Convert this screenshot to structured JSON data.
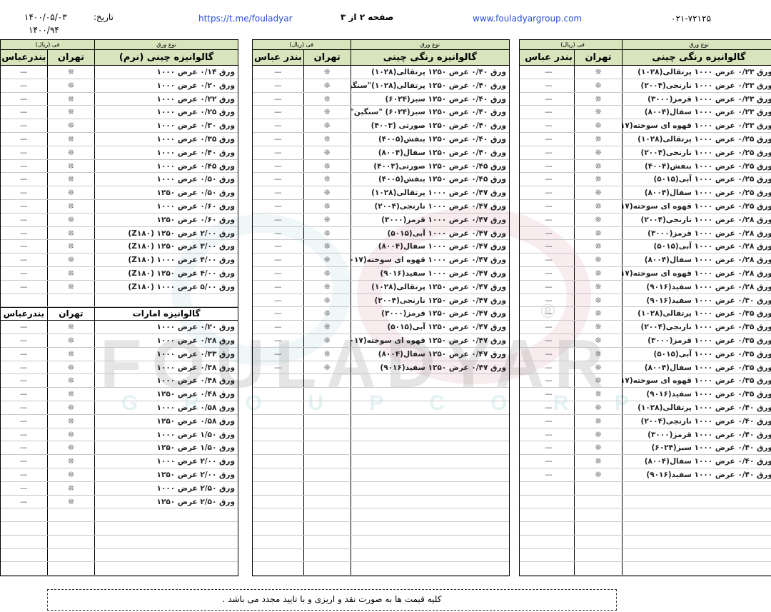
{
  "header": {
    "phone": "۰۲۱-۷۲۱۲۵",
    "website": "www.fouladyargroup.com",
    "page": "صفحه ۲ از ۳",
    "telegram": "https://t.me/fouladyar",
    "date_label": "تاریخ:",
    "date": "۱۴۰۰/۰۵/۰۳",
    "code": "۱۴۰۰/۹۴"
  },
  "watermark": {
    "main": "FOULADYAR",
    "sub": "G R O U P   C O R P.",
    "mark": "®"
  },
  "columns": {
    "type_group": "نوع ورق",
    "price_group": "فی (ریال)",
    "tehran": "تهران",
    "bandar": "بندر عباس",
    "bandar_compact": "بندرعباس"
  },
  "price_symbol": "❊",
  "dash": "—",
  "tables": [
    {
      "title": "گالوانیزه رنگی چینی",
      "rows": [
        "ورق ۰/۲۳ عرض ۱۰۰۰ پرتقالی(۱۰۲۸)",
        "ورق ۰/۲۳ عرض ۱۰۰۰ نارنجی(۲۰۰۴)",
        "ورق ۰/۲۳ عرض ۱۰۰۰ قرمز(۳۰۰۰)",
        "ورق ۰/۲۳ عرض ۱۰۰۰ سفال(۸۰۰۴)",
        "ورق ۰/۲۳ عرض ۱۰۰۰ قهوه ای سوخته(۸۰۱۷)",
        "ورق ۰/۲۵ عرض ۱۰۰۰ پرتقالی(۱۰۲۸)",
        "ورق ۰/۲۵ عرض ۱۰۰۰ نارنجی(۲۰۰۴)",
        "ورق ۰/۲۵ عرض ۱۰۰۰ بنفش(۴۰۰۴)",
        "ورق ۰/۲۵ عرض ۱۰۰۰ آبی(۵۰۱۵)",
        "ورق ۰/۲۵ عرض ۱۰۰۰ سفال(۸۰۰۴)",
        "ورق ۰/۲۵ عرض ۱۰۰۰ قهوه ای سوخته(۸۰۱۷)",
        "ورق ۰/۲۸ عرض ۱۰۰۰ نارنجی(۲۰۰۴)",
        "ورق ۰/۲۸ عرض ۱۰۰۰ قرمز(۳۰۰۰)",
        "ورق ۰/۲۸ عرض ۱۰۰۰ آبی(۵۰۱۵)",
        "ورق ۰/۲۸ عرض ۱۰۰۰ سفال(۸۰۰۴)",
        "ورق ۰/۲۸ عرض ۱۰۰۰ قهوه ای سوخته(۸۰۱۷)",
        "ورق ۰/۲۸ عرض ۱۰۰۰ سفید(۹۰۱۶)",
        "ورق ۰/۳۰ عرض ۱۰۰۰ سفید(۹۰۱۶)",
        "ورق ۰/۳۵ عرض ۱۰۰۰ پرتقالی(۱۰۲۸)",
        "ورق ۰/۳۵ عرض ۱۰۰۰ نارنجی(۲۰۰۴)",
        "ورق ۰/۳۵ عرض ۱۰۰۰ قرمز(۳۰۰۰)",
        "ورق ۰/۳۵ عرض ۱۰۰۰ آبی(۵۰۱۵)",
        "ورق ۰/۳۵ عرض ۱۰۰۰ سفال(۸۰۰۴)",
        "ورق ۰/۳۵ عرض ۱۰۰۰ قهوه ای سوخته(۸۰۱۷)",
        "ورق ۰/۳۵ عرض ۱۰۰۰ سفید(۹۰۱۶)",
        "ورق ۰/۴۰ عرض ۱۰۰۰ پرتقالی(۱۰۲۸)",
        "ورق ۰/۴۰ عرض ۱۰۰۰ نارنجی(۲۰۰۴)",
        "ورق ۰/۴۰ عرض ۱۰۰۰ قرمز(۳۰۰۰)",
        "ورق ۰/۴۰ عرض ۱۰۰۰ سبز(۶۰۲۴)",
        "ورق ۰/۴۰ عرض ۱۰۰۰ سفال(۸۰۰۴)",
        "ورق ۰/۴۰ عرض ۱۰۰۰ سفید(۹۰۱۶)"
      ]
    },
    {
      "title": "گالوانیزه رنگی چینی",
      "rows": [
        "ورق ۰/۴۰ عرض ۱۲۵۰ پرتقالی(۱۰۲۸)",
        "ورق ۰/۴۰ عرض ۱۲۵۰ پرتقالی(۱۰۲۸)\"سنگین\"",
        "ورق ۰/۴۰ عرض ۱۲۵۰ سبز(۶۰۲۴)",
        "ورق ۰/۴۰ عرض ۱۲۵۰ سبز(۶۰۲۴) \"سنگین\"",
        "ورق ۰/۴۰ عرض ۱۲۵۰ صورتی (۴۰۰۳)",
        "ورق ۰/۴۰ عرض ۱۲۵۰ بنفش(۴۰۰۵)",
        "ورق ۰/۴۰ عرض ۱۲۵۰ سفال(۸۰۰۴)",
        "ورق ۰/۴۵ عرض ۱۲۵۰ صورتی(۴۰۰۳)",
        "ورق ۰/۴۵ عرض ۱۲۵۰ بنفش(۴۰۰۵)",
        "ورق ۰/۴۷ عرض ۱۰۰۰ پرتقالی(۱۰۲۸)",
        "ورق ۰/۴۷ عرض ۱۰۰۰ نارنجی(۲۰۰۴)",
        "ورق ۰/۴۷ عرض ۱۰۰۰ قرمز(۳۰۰۰)",
        "ورق ۰/۴۷ عرض ۱۰۰۰ آبی(۵۰۱۵)",
        "ورق ۰/۴۷ عرض ۱۰۰۰ سفال(۸۰۰۴)",
        "ورق ۰/۴۷ عرض ۱۰۰۰ قهوه ای سوخته(۸۰۱۷)",
        "ورق ۰/۴۷ عرض ۱۰۰۰ سفید(۹۰۱۶)",
        "ورق ۰/۴۷ عرض ۱۲۵۰ پرتقالی(۱۰۲۸)",
        "ورق ۰/۴۷ عرض ۱۲۵۰ نارنجی(۲۰۰۴)",
        "ورق ۰/۴۷ عرض ۱۲۵۰ قرمز(۳۰۰۰)",
        "ورق ۰/۴۷ عرض ۱۲۵۰ آبی(۵۰۱۵)",
        "ورق ۰/۴۷ عرض ۱۲۵۰ قهوه ای سوخته(۸۰۱۷)",
        "ورق ۰/۴۷ عرض ۱۲۵۰ سفال(۸۰۰۴)",
        "ورق ۰/۴۷ عرض ۱۲۵۰ سفید(۹۰۱۶)"
      ]
    },
    {
      "title": "گالوانیزه چینی (نرم)",
      "rows": [
        "ورق ۰/۱۴ عرض ۱۰۰۰",
        "ورق ۰/۲۰ عرض ۱۰۰۰",
        "ورق ۰/۲۲ عرض ۱۰۰۰",
        "ورق ۰/۲۵ عرض ۱۰۰۰",
        "ورق ۰/۳۰ عرض ۱۰۰۰",
        "ورق ۰/۳۵ عرض ۱۰۰۰",
        "ورق ۰/۴۰ عرض ۱۰۰۰",
        "ورق ۰/۴۵ عرض ۱۰۰۰",
        "ورق ۰/۵۰ عرض ۱۰۰۰",
        "ورق ۰/۵۰ عرض ۱۲۵۰",
        "ورق ۰/۶۰ عرض ۱۰۰۰",
        "ورق ۰/۶۰ عرض ۱۲۵۰",
        "ورق ۲/۰۰ عرض ۱۲۵۰ (Z۱۸۰)",
        "ورق ۳/۰۰ عرض ۱۲۵۰ (Z۱۸۰)",
        "ورق ۴/۰۰ عرض ۱۰۰۰ (Z۱۸۰)",
        "ورق ۴/۰۰ عرض ۱۲۵۰ (Z۱۸۰)",
        "ورق ۵/۰۰ عرض ۱۰۰۰ (Z۱۸۰)"
      ],
      "section2": {
        "title": "گالوانیزه امارات",
        "rows": [
          "ورق ۰/۲۰ عرض ۱۰۰۰",
          "ورق ۰/۲۸ عرض ۱۰۰۰",
          "ورق ۰/۳۳ عرض ۱۰۰۰",
          "ورق ۰/۳۸ عرض ۱۰۰۰",
          "ورق ۰/۴۸ عرض ۱۰۰۰",
          "ورق ۰/۴۸ عرض ۱۲۵۰",
          "ورق ۰/۵۸ عرض ۱۰۰۰",
          "ورق ۰/۵۸ عرض ۱۲۵۰",
          "ورق ۱/۵۰ عرض ۱۰۰۰",
          "ورق ۱/۵۰ عرض ۱۲۵۰",
          "ورق ۲/۰۰ عرض ۱۰۰۰",
          "ورق ۲/۰۰ عرض ۱۲۵۰",
          "ورق ۲/۵۰ عرض ۱۰۰۰",
          "ورق ۲/۵۰ عرض ۱۲۵۰"
        ]
      }
    }
  ],
  "footer": {
    "note": "کلیه قیمت ها به صورت نقد و اریزی و با تایید مجدد می باشد ."
  },
  "colors": {
    "header_bg": "#d8e4bc",
    "link": "#2a4fd6"
  }
}
